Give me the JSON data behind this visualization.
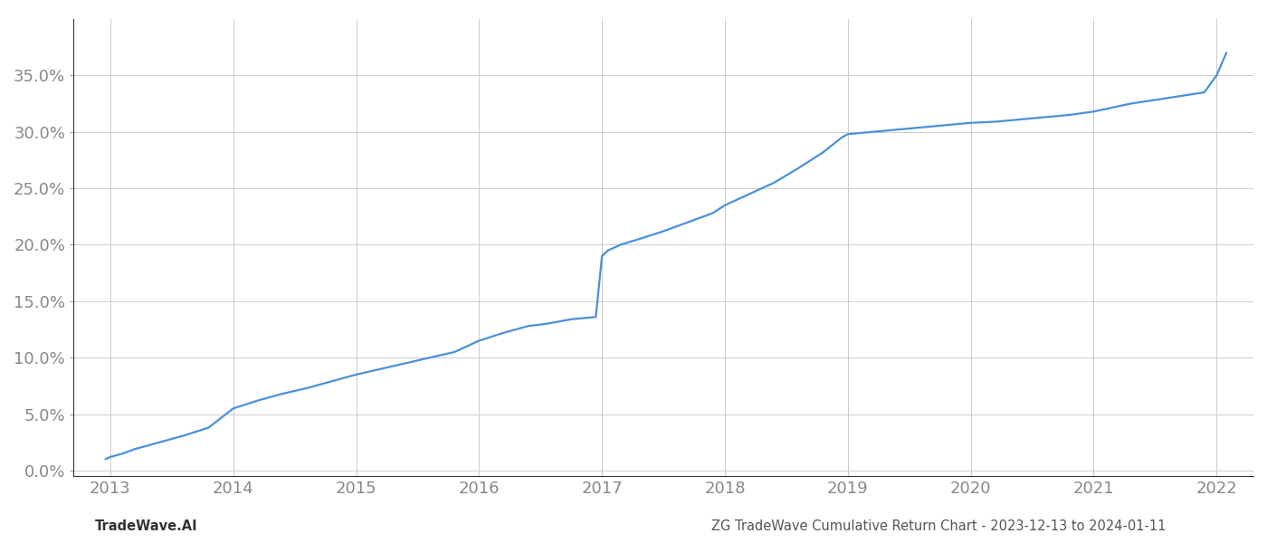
{
  "title": "ZG TradeWave Cumulative Return Chart - 2023-12-13 to 2024-01-11",
  "watermark": "TradeWave.AI",
  "line_color": "#4a90d9",
  "background_color": "#ffffff",
  "grid_color": "#cccccc",
  "x_years": [
    2013,
    2014,
    2015,
    2016,
    2017,
    2018,
    2019,
    2020,
    2021,
    2022
  ],
  "x_values": [
    2012.96,
    2013.0,
    2013.1,
    2013.2,
    2013.4,
    2013.6,
    2013.8,
    2014.0,
    2014.2,
    2014.4,
    2014.6,
    2014.8,
    2015.0,
    2015.2,
    2015.4,
    2015.6,
    2015.8,
    2016.0,
    2016.2,
    2016.4,
    2016.55,
    2016.65,
    2016.75,
    2016.85,
    2016.95,
    2017.0,
    2017.05,
    2017.15,
    2017.3,
    2017.5,
    2017.7,
    2017.9,
    2018.0,
    2018.2,
    2018.4,
    2018.6,
    2018.8,
    2018.95,
    2019.0,
    2019.05,
    2019.1,
    2019.3,
    2019.5,
    2019.7,
    2019.9,
    2020.0,
    2020.2,
    2020.5,
    2020.8,
    2021.0,
    2021.3,
    2021.6,
    2021.9,
    2022.0,
    2022.08
  ],
  "y_values": [
    1.0,
    1.2,
    1.5,
    1.9,
    2.5,
    3.1,
    3.8,
    5.5,
    6.2,
    6.8,
    7.3,
    7.9,
    8.5,
    9.0,
    9.5,
    10.0,
    10.5,
    11.5,
    12.2,
    12.8,
    13.0,
    13.2,
    13.4,
    13.5,
    13.6,
    19.0,
    19.5,
    20.0,
    20.5,
    21.2,
    22.0,
    22.8,
    23.5,
    24.5,
    25.5,
    26.8,
    28.2,
    29.5,
    29.8,
    29.85,
    29.9,
    30.1,
    30.3,
    30.5,
    30.7,
    30.8,
    30.9,
    31.2,
    31.5,
    31.8,
    32.5,
    33.0,
    33.5,
    35.0,
    37.0
  ],
  "yticks": [
    0.0,
    5.0,
    10.0,
    15.0,
    20.0,
    25.0,
    30.0,
    35.0
  ],
  "xlim": [
    2012.7,
    2022.3
  ],
  "ylim": [
    -0.5,
    40.0
  ],
  "tick_label_color": "#888888",
  "tick_fontsize": 13,
  "footer_fontsize": 10.5,
  "line_width": 1.6
}
